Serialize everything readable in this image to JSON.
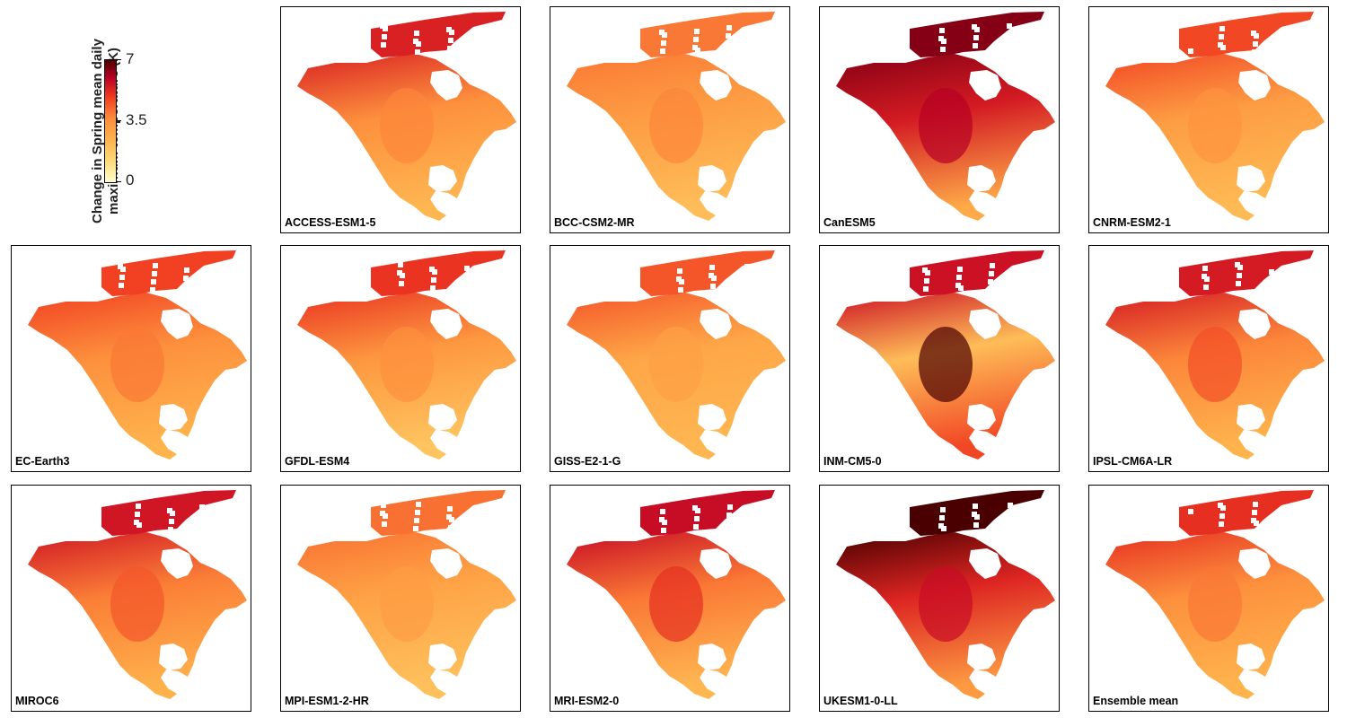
{
  "legend": {
    "title_line1": "Change in Spring mean daily",
    "title_line2": "maximum temperature (K)",
    "ticks": [
      "7",
      "3.5",
      "0"
    ],
    "scale_min": 0,
    "scale_max": 7,
    "colors": [
      "#ffffcc",
      "#fed976",
      "#feb24c",
      "#fd8d3c",
      "#f03b20",
      "#bd0026",
      "#4a0000"
    ]
  },
  "panels": [
    {
      "label": "ACCESS-ESM1-5",
      "north_value": 5.2,
      "interior_value": 3.4,
      "south_value": 2.2,
      "hot_spot": 3.6
    },
    {
      "label": "BCC-CSM2-MR",
      "north_value": 3.8,
      "interior_value": 3.0,
      "south_value": 2.0,
      "hot_spot": 3.6
    },
    {
      "label": "CanESM5",
      "north_value": 6.4,
      "interior_value": 5.3,
      "south_value": 2.6,
      "hot_spot": 5.9
    },
    {
      "label": "CNRM-ESM2-1",
      "north_value": 4.5,
      "interior_value": 3.0,
      "south_value": 2.1,
      "hot_spot": 3.3
    },
    {
      "label": "EC-Earth3",
      "north_value": 4.6,
      "interior_value": 3.4,
      "south_value": 2.3,
      "hot_spot": 3.8
    },
    {
      "label": "GFDL-ESM4",
      "north_value": 4.8,
      "interior_value": 3.2,
      "south_value": 1.8,
      "hot_spot": 3.4
    },
    {
      "label": "GISS-E2-1-G",
      "north_value": 4.3,
      "interior_value": 2.7,
      "south_value": 2.2,
      "hot_spot": 2.9
    },
    {
      "label": "INM-CM5-0",
      "north_value": 5.5,
      "interior_value": 2.0,
      "south_value": 4.5,
      "hot_spot": 7.0
    },
    {
      "label": "IPSL-CM6A-LR",
      "north_value": 5.3,
      "interior_value": 3.6,
      "south_value": 2.3,
      "hot_spot": 4.4
    },
    {
      "label": "MIROC6",
      "north_value": 5.4,
      "interior_value": 3.7,
      "south_value": 2.4,
      "hot_spot": 4.3
    },
    {
      "label": "MPI-ESM1-2-HR",
      "north_value": 3.9,
      "interior_value": 2.8,
      "south_value": 1.9,
      "hot_spot": 3.0
    },
    {
      "label": "MRI-ESM2-0",
      "north_value": 5.6,
      "interior_value": 3.8,
      "south_value": 2.2,
      "hot_spot": 4.9
    },
    {
      "label": "UKESM1-0-LL",
      "north_value": 7.0,
      "interior_value": 5.1,
      "south_value": 3.1,
      "hot_spot": 5.6
    },
    {
      "label": "Ensemble mean",
      "north_value": 4.9,
      "interior_value": 3.4,
      "south_value": 2.3,
      "hot_spot": 3.8
    }
  ]
}
